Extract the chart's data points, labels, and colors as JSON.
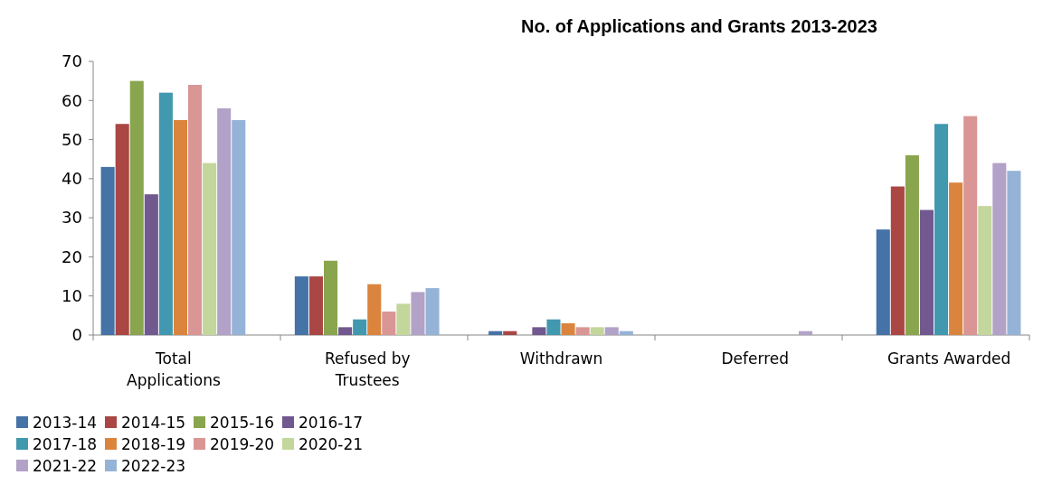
{
  "chart_data": {
    "type": "bar",
    "title": "No. of Applications and Grants 2013-2023",
    "categories": [
      "Total Applications",
      "Refused by Trustees",
      "Withdrawn",
      "Deferred",
      "Grants Awarded"
    ],
    "series": [
      {
        "name": "2013-14",
        "color": "#4572a7",
        "values": [
          43,
          15,
          1,
          0,
          27
        ]
      },
      {
        "name": "2014-15",
        "color": "#aa4643",
        "values": [
          54,
          15,
          1,
          0,
          38
        ]
      },
      {
        "name": "2015-16",
        "color": "#89a54e",
        "values": [
          65,
          19,
          0,
          0,
          46
        ]
      },
      {
        "name": "2016-17",
        "color": "#71588f",
        "values": [
          36,
          2,
          2,
          0,
          32
        ]
      },
      {
        "name": "2017-18",
        "color": "#4198af",
        "values": [
          62,
          4,
          4,
          0,
          54
        ]
      },
      {
        "name": "2018-19",
        "color": "#db843d",
        "values": [
          55,
          13,
          3,
          0,
          39
        ]
      },
      {
        "name": "2019-20",
        "color": "#d99694",
        "values": [
          64,
          6,
          2,
          0,
          56
        ]
      },
      {
        "name": "2020-21",
        "color": "#c3d69b",
        "values": [
          44,
          8,
          2,
          0,
          33
        ]
      },
      {
        "name": "2021-22",
        "color": "#b3a2c7",
        "values": [
          58,
          11,
          2,
          1,
          44
        ]
      },
      {
        "name": "2022-23",
        "color": "#95b3d7",
        "values": [
          55,
          12,
          1,
          0,
          42
        ]
      }
    ],
    "ylim": [
      0,
      70
    ],
    "yticks": [
      0,
      10,
      20,
      30,
      40,
      50,
      60,
      70
    ],
    "grid": false,
    "legend": "bottom"
  }
}
